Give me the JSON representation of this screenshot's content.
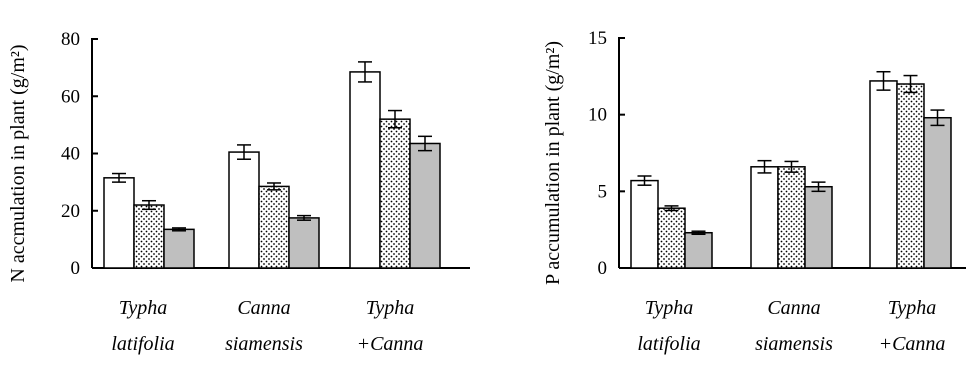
{
  "colors": {
    "axis": "#000000",
    "series_fills": [
      "#ffffff",
      "dots",
      "#bfbfbf"
    ],
    "bar_stroke": "#000000"
  },
  "chart_data": [
    {
      "type": "bar",
      "categories": [
        [
          "Typha",
          "latifolia"
        ],
        [
          "Canna",
          "siamensis"
        ],
        [
          "Typha",
          "+Canna"
        ]
      ],
      "ylabel": "N accmulation in plant (g/m²)",
      "ylim": [
        0,
        80
      ],
      "yticks": [
        "0",
        "20",
        "40",
        "60",
        "80"
      ],
      "series": [
        {
          "values": [
            31.5,
            40.5,
            68.5
          ],
          "errors": [
            1.5,
            2.5,
            3.5
          ]
        },
        {
          "values": [
            22,
            28.5,
            52
          ],
          "errors": [
            1.5,
            1.2,
            3
          ]
        },
        {
          "values": [
            13.5,
            17.5,
            43.5
          ],
          "errors": [
            0.5,
            0.8,
            2.5
          ]
        }
      ]
    },
    {
      "type": "bar",
      "categories": [
        [
          "Typha",
          "latifolia"
        ],
        [
          "Canna",
          "siamensis"
        ],
        [
          "Typha",
          "+Canna"
        ]
      ],
      "ylabel": "P accumulation in plant (g/m²)",
      "ylim": [
        0,
        15
      ],
      "yticks": [
        "0",
        "5",
        "10",
        "15"
      ],
      "series": [
        {
          "values": [
            5.7,
            6.6,
            12.2
          ],
          "errors": [
            0.3,
            0.4,
            0.6
          ]
        },
        {
          "values": [
            3.9,
            6.6,
            12.0
          ],
          "errors": [
            0.15,
            0.35,
            0.55
          ]
        },
        {
          "values": [
            2.3,
            5.3,
            9.8
          ],
          "errors": [
            0.1,
            0.3,
            0.5
          ]
        }
      ]
    }
  ]
}
